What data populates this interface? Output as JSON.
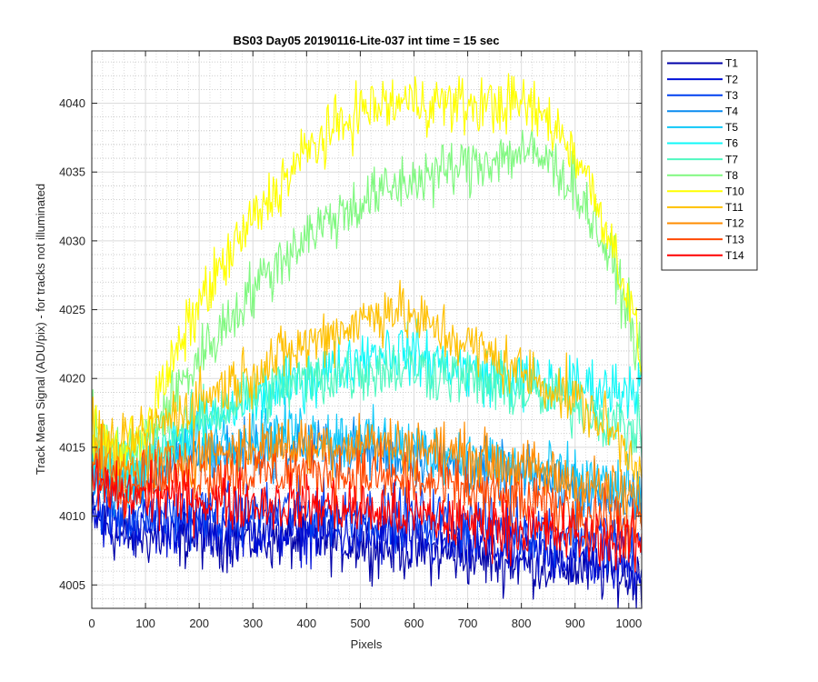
{
  "chart_data": {
    "type": "line",
    "title": "BS03 Day05 20190116-Lite-037 int time = 15 sec",
    "xlabel": "Pixels",
    "ylabel": "Track Mean Signal (ADU/pix) - for tracks not illuminated",
    "xlim": [
      0,
      1024
    ],
    "ylim": [
      4003.3,
      4043.8
    ],
    "x_ticks": [
      0,
      100,
      200,
      300,
      400,
      500,
      600,
      700,
      800,
      900,
      1000
    ],
    "y_ticks": [
      4005,
      4010,
      4015,
      4020,
      4025,
      4030,
      4035,
      4040
    ],
    "grid": true,
    "minor_grid": true,
    "legend_position": "outside-right",
    "series": [
      {
        "name": "T1",
        "color": "#0000a8",
        "x": [
          0,
          50,
          100,
          200,
          300,
          400,
          500,
          600,
          700,
          800,
          900,
          960,
          1024
        ],
        "y": [
          4010.0,
          4008.5,
          4008.5,
          4008.3,
          4008.3,
          4008.2,
          4008.0,
          4007.5,
          4007.0,
          4006.6,
          4006.2,
          4005.8,
          4005.5
        ]
      },
      {
        "name": "T2",
        "color": "#0010d8",
        "x": [
          0,
          50,
          100,
          200,
          300,
          400,
          500,
          600,
          700,
          800,
          900,
          960,
          1024
        ],
        "y": [
          4010.5,
          4009.3,
          4009.3,
          4009.2,
          4009.0,
          4008.8,
          4008.6,
          4008.2,
          4007.8,
          4007.4,
          4007.0,
          4006.7,
          4006.3
        ]
      },
      {
        "name": "T3",
        "color": "#0040f0",
        "x": [
          0,
          50,
          100,
          200,
          300,
          400,
          500,
          600,
          700,
          800,
          900,
          960,
          1024
        ],
        "y": [
          4011.0,
          4010.0,
          4010.0,
          4010.2,
          4010.3,
          4010.3,
          4010.2,
          4010.0,
          4009.6,
          4009.2,
          4008.8,
          4008.4,
          4008.0
        ]
      },
      {
        "name": "T4",
        "color": "#0a8cf0",
        "x": [
          0,
          50,
          100,
          200,
          300,
          400,
          500,
          600,
          700,
          800,
          900,
          960,
          1024
        ],
        "y": [
          4013.0,
          4012.0,
          4013.0,
          4014.5,
          4015.0,
          4015.0,
          4014.8,
          4014.2,
          4013.5,
          4012.8,
          4012.0,
          4011.5,
          4010.8
        ]
      },
      {
        "name": "T5",
        "color": "#10c8f8",
        "x": [
          0,
          50,
          100,
          200,
          300,
          400,
          500,
          600,
          700,
          800,
          900,
          960,
          1024
        ],
        "y": [
          4013.5,
          4012.5,
          4013.5,
          4015.2,
          4016.0,
          4016.0,
          4015.6,
          4015.0,
          4014.3,
          4013.6,
          4012.8,
          4012.2,
          4011.5
        ]
      },
      {
        "name": "T6",
        "color": "#10f8f8",
        "x": [
          0,
          50,
          100,
          200,
          300,
          400,
          500,
          550,
          600,
          700,
          800,
          900,
          960,
          1024
        ],
        "y": [
          4014.0,
          4013.0,
          4014.0,
          4016.5,
          4018.5,
          4020.0,
          4021.5,
          4022.2,
          4021.8,
          4020.5,
          4019.8,
          4019.5,
          4019.2,
          4019.5
        ]
      },
      {
        "name": "T7",
        "color": "#50f8c0",
        "x": [
          0,
          50,
          100,
          200,
          300,
          400,
          500,
          600,
          700,
          800,
          900,
          960,
          1024
        ],
        "y": [
          4014.5,
          4013.5,
          4014.5,
          4017.0,
          4018.8,
          4019.8,
          4020.5,
          4020.8,
          4020.0,
          4019.0,
          4018.0,
          4017.0,
          4016.0
        ]
      },
      {
        "name": "T8",
        "color": "#80f880",
        "x": [
          0,
          50,
          100,
          150,
          200,
          300,
          400,
          500,
          600,
          700,
          800,
          850,
          900,
          950,
          1000,
          1024
        ],
        "y": [
          4016.5,
          4014.5,
          4015.5,
          4018.5,
          4021.5,
          4026.5,
          4030.5,
          4032.8,
          4034.5,
          4035.5,
          4036.5,
          4035.8,
          4034.0,
          4030.0,
          4025.0,
          4020.5
        ]
      },
      {
        "name": "T10",
        "color": "#ffff00",
        "x": [
          0,
          50,
          100,
          150,
          200,
          300,
          400,
          500,
          600,
          700,
          800,
          850,
          900,
          950,
          1000,
          1024
        ],
        "y": [
          4016.5,
          4014.5,
          4016.5,
          4021.0,
          4025.5,
          4031.5,
          4036.5,
          4039.5,
          4040.2,
          4039.8,
          4040.0,
          4038.8,
          4036.5,
          4032.0,
          4026.0,
          4021.0
        ]
      },
      {
        "name": "T11",
        "color": "#ffc000",
        "x": [
          0,
          50,
          100,
          200,
          300,
          400,
          500,
          560,
          600,
          700,
          800,
          900,
          960,
          1024
        ],
        "y": [
          4016.0,
          4014.5,
          4016.0,
          4018.5,
          4020.5,
          4022.5,
          4024.2,
          4025.2,
          4024.3,
          4022.5,
          4020.5,
          4018.5,
          4016.5,
          4013.5
        ]
      },
      {
        "name": "T12",
        "color": "#ff8c00",
        "x": [
          0,
          50,
          100,
          200,
          300,
          400,
          500,
          600,
          700,
          800,
          900,
          960,
          1024
        ],
        "y": [
          4014.0,
          4013.0,
          4013.5,
          4014.5,
          4015.0,
          4015.2,
          4015.3,
          4015.0,
          4014.3,
          4013.5,
          4012.5,
          4011.8,
          4011.0
        ]
      },
      {
        "name": "T13",
        "color": "#ff4800",
        "x": [
          0,
          50,
          100,
          200,
          300,
          400,
          500,
          600,
          700,
          800,
          900,
          960,
          1024
        ],
        "y": [
          4013.5,
          4012.5,
          4012.8,
          4013.0,
          4013.2,
          4013.2,
          4013.0,
          4012.5,
          4011.8,
          4011.0,
          4010.3,
          4009.8,
          4009.3
        ]
      },
      {
        "name": "T14",
        "color": "#ff0000",
        "x": [
          0,
          50,
          100,
          200,
          300,
          400,
          500,
          600,
          700,
          800,
          900,
          960,
          1024
        ],
        "y": [
          4012.5,
          4011.5,
          4011.5,
          4011.2,
          4011.0,
          4010.8,
          4010.5,
          4010.0,
          4009.5,
          4009.0,
          4008.6,
          4008.3,
          4008.0
        ]
      }
    ]
  }
}
